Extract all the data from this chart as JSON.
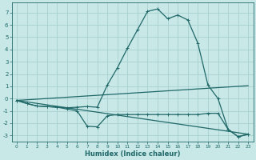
{
  "xlabel": "Humidex (Indice chaleur)",
  "xlim": [
    -0.5,
    23.5
  ],
  "ylim": [
    -3.5,
    7.8
  ],
  "yticks": [
    -3,
    -2,
    -1,
    0,
    1,
    2,
    3,
    4,
    5,
    6,
    7
  ],
  "xticks": [
    0,
    1,
    2,
    3,
    4,
    5,
    6,
    7,
    8,
    9,
    10,
    11,
    12,
    13,
    14,
    15,
    16,
    17,
    18,
    19,
    20,
    21,
    22,
    23
  ],
  "bg_color": "#c8e8e8",
  "grid_color": "#a8d0d0",
  "line_color": "#206868",
  "line1_x": [
    0,
    1,
    2,
    3,
    4,
    5,
    6,
    7,
    8,
    9,
    10,
    11,
    12,
    13,
    14,
    15,
    16,
    17,
    18,
    19,
    20,
    21,
    22,
    23
  ],
  "line1_y": [
    -0.15,
    -0.4,
    -0.6,
    -0.65,
    -0.7,
    -0.75,
    -0.7,
    -0.65,
    -0.7,
    1.1,
    2.5,
    4.1,
    5.6,
    7.1,
    7.3,
    6.5,
    6.8,
    6.4,
    4.5,
    1.1,
    0.0,
    -2.5,
    -3.1,
    -2.9
  ],
  "line2_x": [
    0,
    1,
    2,
    3,
    4,
    5,
    6,
    7,
    8,
    9,
    10,
    11,
    12,
    13,
    14,
    15,
    16,
    17,
    18,
    19,
    20,
    21,
    22,
    23
  ],
  "line2_y": [
    -0.15,
    -0.4,
    -0.6,
    -0.65,
    -0.7,
    -0.85,
    -1.0,
    -2.25,
    -2.3,
    -1.4,
    -1.3,
    -1.3,
    -1.3,
    -1.3,
    -1.3,
    -1.3,
    -1.3,
    -1.3,
    -1.3,
    -1.2,
    -1.2,
    -2.5,
    -3.1,
    -2.9
  ],
  "line3_x": [
    0,
    23
  ],
  "line3_y": [
    -0.15,
    1.05
  ],
  "line4_x": [
    0,
    23
  ],
  "line4_y": [
    -0.15,
    -2.9
  ]
}
